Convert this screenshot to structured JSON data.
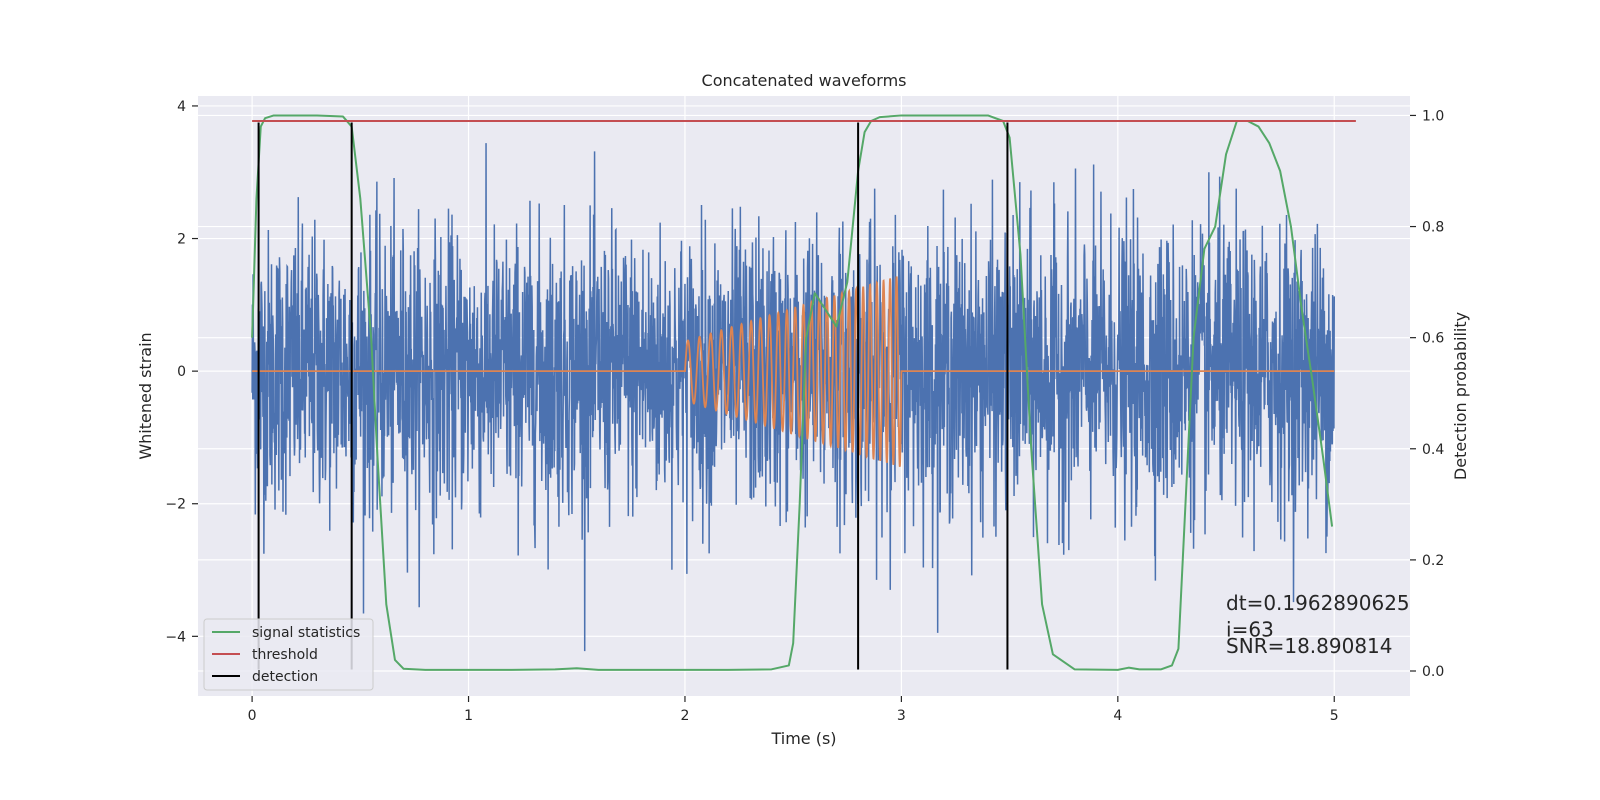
{
  "chart_data": {
    "type": "line",
    "title": "Concatenated waveforms",
    "xlabel": "Time (s)",
    "ylabel_left": "Whitened strain",
    "ylabel_right": "Detection probability",
    "xlim": [
      -0.25,
      5.35
    ],
    "ylim_left": [
      -4.9,
      4.15
    ],
    "ylim_right": [
      -0.045,
      1.035
    ],
    "x_ticks": [
      0,
      1,
      2,
      3,
      4,
      5
    ],
    "x_tick_labels": [
      "0",
      "1",
      "2",
      "3",
      "4",
      "5"
    ],
    "y_left_ticks": [
      -4,
      -2,
      0,
      2,
      4
    ],
    "y_left_tick_labels": [
      "−4",
      "−2",
      "0",
      "2",
      "4"
    ],
    "y_right_ticks": [
      0.0,
      0.2,
      0.4,
      0.6,
      0.8,
      1.0
    ],
    "y_right_tick_labels": [
      "0.0",
      "0.2",
      "0.4",
      "0.6",
      "0.8",
      "1.0"
    ],
    "grid": true,
    "legend_position": "lower-left",
    "strain_noise": {
      "x_range": [
        0,
        5
      ],
      "amplitude_std": 1.05,
      "color": "#4c72b0"
    },
    "injected_signal": {
      "x_range": [
        2.0,
        3.0
      ],
      "amplitude_start": 0.45,
      "amplitude_end": 1.45,
      "color": "#dd8452"
    },
    "series": [
      {
        "name": "signal statistics",
        "axis": "right",
        "color": "#55a868",
        "x": [
          0.0,
          0.02,
          0.04,
          0.06,
          0.1,
          0.2,
          0.3,
          0.42,
          0.46,
          0.5,
          0.55,
          0.58,
          0.62,
          0.66,
          0.7,
          0.8,
          1.0,
          1.2,
          1.4,
          1.5,
          1.6,
          1.8,
          2.0,
          2.2,
          2.4,
          2.48,
          2.5,
          2.53,
          2.56,
          2.6,
          2.65,
          2.7,
          2.75,
          2.8,
          2.83,
          2.86,
          2.9,
          3.0,
          3.2,
          3.4,
          3.47,
          3.5,
          3.55,
          3.6,
          3.65,
          3.7,
          3.8,
          4.0,
          4.05,
          4.1,
          4.2,
          4.25,
          4.28,
          4.3,
          4.35,
          4.4,
          4.45,
          4.5,
          4.55,
          4.6,
          4.65,
          4.7,
          4.75,
          4.8,
          4.85,
          4.9,
          4.95,
          4.99
        ],
        "values": [
          0.6,
          0.85,
          0.98,
          0.995,
          1.0,
          1.0,
          1.0,
          0.998,
          0.98,
          0.85,
          0.6,
          0.38,
          0.12,
          0.02,
          0.004,
          0.002,
          0.002,
          0.002,
          0.003,
          0.005,
          0.002,
          0.002,
          0.002,
          0.002,
          0.003,
          0.01,
          0.05,
          0.3,
          0.6,
          0.68,
          0.65,
          0.62,
          0.7,
          0.9,
          0.97,
          0.99,
          0.997,
          1.0,
          1.0,
          1.0,
          0.99,
          0.96,
          0.75,
          0.4,
          0.12,
          0.03,
          0.003,
          0.002,
          0.006,
          0.003,
          0.003,
          0.01,
          0.04,
          0.2,
          0.6,
          0.76,
          0.8,
          0.93,
          0.99,
          0.99,
          0.98,
          0.95,
          0.9,
          0.8,
          0.65,
          0.52,
          0.38,
          0.26
        ]
      },
      {
        "name": "threshold",
        "axis": "right",
        "color": "#c44e52",
        "x": [
          0.0,
          5.1
        ],
        "values": [
          0.99,
          0.99
        ]
      },
      {
        "name": "detection",
        "axis": "left",
        "color": "#000000",
        "segments": [
          {
            "x": 0.03,
            "y": [
              -4.5,
              3.75
            ]
          },
          {
            "x": 0.46,
            "y": [
              -4.5,
              3.75
            ]
          },
          {
            "x": 2.8,
            "y": [
              -4.5,
              3.75
            ]
          },
          {
            "x": 3.49,
            "y": [
              -4.5,
              3.75
            ]
          }
        ]
      }
    ],
    "annotations": [
      {
        "text": "dt=0.1962890625",
        "x": 4.5,
        "y_left": -3.6
      },
      {
        "text": " i=63",
        "x": 4.5,
        "y_left": -4.0
      },
      {
        "text": "SNR=18.890814",
        "x": 4.5,
        "y_left": -4.25
      }
    ]
  }
}
